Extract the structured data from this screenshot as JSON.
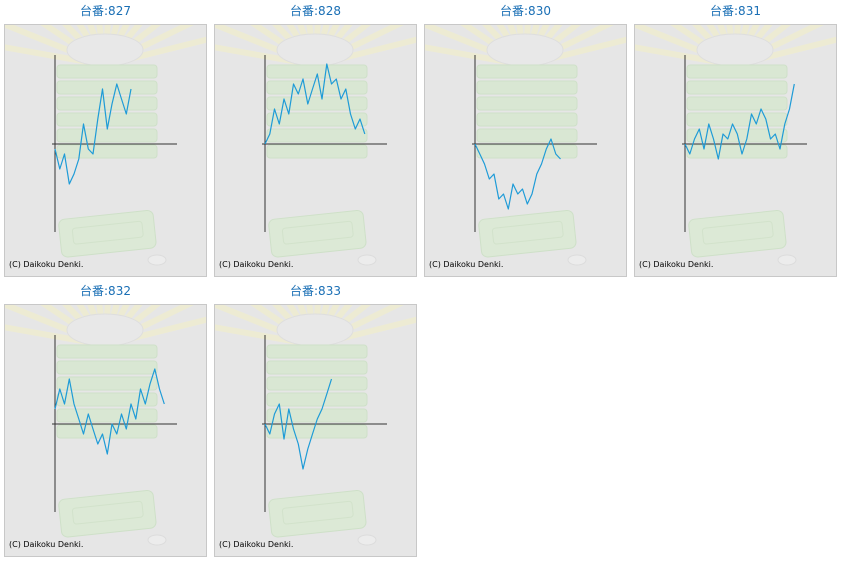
{
  "copyright": "(C) Daikoku Denki.",
  "colors": {
    "title": "#1a6fb5",
    "line": "#1e9bd7",
    "axis": "#333333",
    "panel": "#e6e6e6"
  },
  "icons": {
    "background": "pachislot-machine-watermark"
  },
  "machines": [
    {
      "title": "台番:827",
      "series": [
        -0.05,
        -0.25,
        -0.1,
        -0.4,
        -0.3,
        -0.15,
        0.2,
        -0.05,
        -0.1,
        0.25,
        0.55,
        0.15,
        0.4,
        0.6,
        0.45,
        0.3,
        0.55
      ]
    },
    {
      "title": "台番:828",
      "series": [
        0.0,
        0.1,
        0.35,
        0.2,
        0.45,
        0.3,
        0.6,
        0.5,
        0.65,
        0.4,
        0.55,
        0.7,
        0.45,
        0.8,
        0.6,
        0.65,
        0.45,
        0.55,
        0.3,
        0.15,
        0.25,
        0.1
      ]
    },
    {
      "title": "台番:830",
      "series": [
        0.0,
        -0.1,
        -0.2,
        -0.35,
        -0.3,
        -0.55,
        -0.5,
        -0.65,
        -0.4,
        -0.5,
        -0.45,
        -0.6,
        -0.5,
        -0.3,
        -0.2,
        -0.05,
        0.05,
        -0.1,
        -0.15
      ]
    },
    {
      "title": "台番:831",
      "series": [
        0.0,
        -0.1,
        0.05,
        0.15,
        -0.05,
        0.2,
        0.05,
        -0.15,
        0.1,
        0.05,
        0.2,
        0.1,
        -0.1,
        0.05,
        0.3,
        0.2,
        0.35,
        0.25,
        0.05,
        0.1,
        -0.05,
        0.2,
        0.35,
        0.6
      ]
    },
    {
      "title": "台番:832",
      "series": [
        0.15,
        0.35,
        0.2,
        0.45,
        0.2,
        0.05,
        -0.1,
        0.1,
        -0.05,
        -0.2,
        -0.1,
        -0.3,
        0.0,
        -0.1,
        0.1,
        -0.05,
        0.2,
        0.05,
        0.35,
        0.2,
        0.4,
        0.55,
        0.35,
        0.2
      ]
    },
    {
      "title": "台番:833",
      "series": [
        0.0,
        -0.1,
        0.1,
        0.2,
        -0.15,
        0.15,
        -0.05,
        -0.2,
        -0.45,
        -0.25,
        -0.1,
        0.05,
        0.15,
        0.3,
        0.45
      ]
    }
  ]
}
